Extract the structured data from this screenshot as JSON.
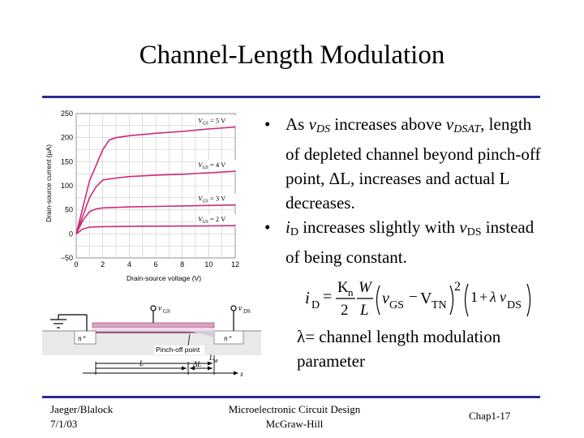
{
  "slide": {
    "title": "Channel-Length Modulation"
  },
  "bullets": [
    {
      "parts": [
        {
          "t": "As "
        },
        {
          "t": "v",
          "i": 1
        },
        {
          "t": "DS",
          "sub": 1,
          "i": 1
        },
        {
          "t": " increases above "
        },
        {
          "t": "v",
          "i": 1
        },
        {
          "t": "DSAT",
          "sub": 1,
          "i": 1
        },
        {
          "t": ", length of depleted channel beyond pinch-off point, "
        },
        {
          "t": "Δ"
        },
        {
          "t": "L, increases and actual L decreases."
        }
      ]
    },
    {
      "parts": [
        {
          "t": "i",
          "i": 1
        },
        {
          "t": "D",
          "sub": 1
        },
        {
          "t": " increases slightly with "
        },
        {
          "t": "v",
          "i": 1
        },
        {
          "t": "DS",
          "sub": 1
        },
        {
          "t": " instead of being constant."
        }
      ]
    }
  ],
  "equation": {
    "lhs": "i",
    "lhs_sub": "D",
    "equals": "=",
    "kn": "K",
    "kn_sub": "n",
    "two": "2",
    "W": "W",
    "L": "L",
    "vgs": "v",
    "vgs_sub": "GS",
    "minus": "−",
    "vtn": "V",
    "vtn_sub": "TN",
    "square": "2",
    "one": "1",
    "plus": "+",
    "lambda": "λ",
    "vds": "v",
    "vds_sub": "DS"
  },
  "lambda_definition": {
    "symbol": "λ",
    "text": "= channel length modulation parameter"
  },
  "footer": {
    "authors": "Jaeger/Blalock",
    "date": "7/1/03",
    "book_title": "Microelectronic Circuit Design",
    "publisher": "McGraw-Hill",
    "chapter": "Chap1-17"
  },
  "chart_data": {
    "type": "line",
    "xlabel": "Drain-source voltage (V)",
    "ylabel": "Drain-source current (μA)",
    "xlim": [
      0,
      12
    ],
    "ylim": [
      -50,
      250
    ],
    "x_ticks": [
      "0",
      "2",
      "4",
      "6",
      "8",
      "10",
      "12"
    ],
    "y_ticks": [
      "−50",
      "0",
      "50",
      "100",
      "150",
      "200",
      "250"
    ],
    "grid": true,
    "line_color": "#cc2a7a",
    "series": [
      {
        "name": "V_GS = 5 V",
        "label_main": "V",
        "label_sub": "GS",
        "label_rest": " = 5 V",
        "points": [
          [
            0,
            0
          ],
          [
            1,
            110
          ],
          [
            2,
            175
          ],
          [
            2.5,
            195
          ],
          [
            3,
            200
          ],
          [
            4,
            204
          ],
          [
            6,
            209
          ],
          [
            8,
            213
          ],
          [
            10,
            218
          ],
          [
            12,
            222
          ]
        ]
      },
      {
        "name": "V_GS = 4 V",
        "label_main": "V",
        "label_sub": "GS",
        "label_rest": " = 4 V",
        "points": [
          [
            0,
            0
          ],
          [
            1,
            75
          ],
          [
            1.5,
            98
          ],
          [
            2,
            112
          ],
          [
            3,
            116
          ],
          [
            4,
            119
          ],
          [
            6,
            122
          ],
          [
            8,
            124
          ],
          [
            10,
            127
          ],
          [
            12,
            130
          ]
        ]
      },
      {
        "name": "V_GS = 3 V",
        "label_main": "V",
        "label_sub": "GS",
        "label_rest": " = 3 V",
        "points": [
          [
            0,
            0
          ],
          [
            0.5,
            28
          ],
          [
            1,
            46
          ],
          [
            1.5,
            52
          ],
          [
            2,
            54
          ],
          [
            4,
            56
          ],
          [
            6,
            57
          ],
          [
            8,
            58
          ],
          [
            10,
            59
          ],
          [
            12,
            60
          ]
        ]
      },
      {
        "name": "V_GS = 2 V",
        "label_main": "V",
        "label_sub": "GS",
        "label_rest": " = 2 V",
        "points": [
          [
            0,
            0
          ],
          [
            0.5,
            10
          ],
          [
            1,
            14
          ],
          [
            2,
            15
          ],
          [
            4,
            15.5
          ],
          [
            6,
            16
          ],
          [
            8,
            16.3
          ],
          [
            10,
            16.6
          ],
          [
            12,
            17
          ]
        ]
      }
    ]
  },
  "device_figure": {
    "vgs_label": "v",
    "vgs_sub": "GS",
    "vds_label": "v",
    "vds_sub": "DS",
    "n_source": "n⁺",
    "n_drain": "n⁺",
    "pinch_off": "Pinch-off point",
    "L": "L",
    "delta_L": "ΔL",
    "LM": "L",
    "LM_sub": "M",
    "x": "x"
  }
}
